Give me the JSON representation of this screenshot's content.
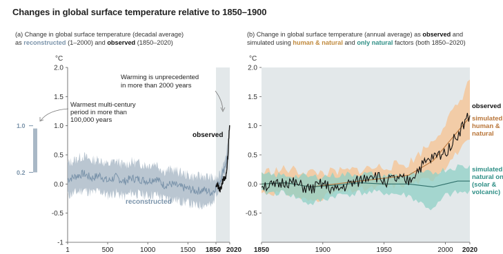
{
  "title": "Changes in global surface temperature relative to 1850–1900",
  "panel_a": {
    "subtitle_line1": "(a) Change in global surface temperature (decadal average)",
    "subtitle_as": "as ",
    "subtitle_reconstructed": "reconstructed",
    "subtitle_mid": " (1–2000) and ",
    "subtitle_observed": "observed",
    "subtitle_end": " (1850–2020)",
    "unit": "°C",
    "annotation_unprecedented": [
      "Warming is unprecedented",
      "in more than 2000 years"
    ],
    "annotation_warmest": [
      "Warmest multi-century",
      "period in more than",
      "100,000 years"
    ],
    "inset_labels": [
      "1.0",
      "0.2"
    ],
    "label_observed": "observed",
    "label_reconstructed": "reconstructed"
  },
  "panel_b": {
    "subtitle_line1_a": "(b) Change in global surface temperature (annual average) as ",
    "subtitle_line1_obs": "observed",
    "subtitle_line1_and": " and",
    "subtitle_line2_a": "simulated using ",
    "subtitle_line2_human": "human & natural",
    "subtitle_line2_and": " and ",
    "subtitle_line2_nat": "only natural",
    "subtitle_line2_end": " factors (both 1850–2020)",
    "unit": "°C",
    "label_observed": "observed",
    "label_human": [
      "simulated",
      "human &",
      "natural"
    ],
    "label_natural": [
      "simulated",
      "natural onl",
      "(solar &",
      "volcanic)"
    ]
  },
  "colors": {
    "reconstructed": "#7a93aa",
    "reconstructed_band": "#a9b8c6",
    "observed": "#111111",
    "human_band": "#f3c9a0",
    "human_line": "#b9763a",
    "natural_band": "#8fd0c5",
    "natural_line": "#2f6f6a",
    "shade": "#e3e8ea"
  },
  "chart_data": [
    {
      "type": "line",
      "title": "(a) Change in global surface temperature (decadal average)",
      "ylabel": "°C",
      "ylim": [
        -1,
        2
      ],
      "yticks": [
        "2.0",
        "1.5",
        "1.0",
        "0.5",
        "0.0",
        "-0.5",
        "-1"
      ],
      "xlim": [
        1,
        2020
      ],
      "xticks": [
        "1",
        "500",
        "1000",
        "1500",
        "1850",
        "2020"
      ],
      "series": [
        {
          "name": "reconstructed",
          "x": [
            1,
            100,
            200,
            300,
            400,
            500,
            600,
            700,
            800,
            900,
            1000,
            1100,
            1200,
            1300,
            1400,
            1500,
            1600,
            1700,
            1800,
            1850,
            1900,
            2000
          ],
          "y": [
            0.08,
            0.13,
            0.18,
            0.1,
            0.15,
            0.05,
            0.12,
            0.04,
            0.1,
            0.08,
            0.05,
            0.1,
            -0.02,
            0.0,
            -0.05,
            -0.08,
            -0.12,
            -0.1,
            -0.15,
            -0.05,
            0.05,
            0.5
          ],
          "lower": [
            -0.2,
            -0.15,
            -0.1,
            -0.15,
            -0.12,
            -0.2,
            -0.15,
            -0.22,
            -0.15,
            -0.18,
            -0.2,
            -0.18,
            -0.25,
            -0.25,
            -0.3,
            -0.32,
            -0.38,
            -0.35,
            -0.38,
            -0.15,
            -0.05,
            0.3
          ],
          "upper": [
            0.35,
            0.42,
            0.48,
            0.4,
            0.42,
            0.33,
            0.4,
            0.32,
            0.38,
            0.35,
            0.32,
            0.36,
            0.22,
            0.25,
            0.2,
            0.15,
            0.12,
            0.14,
            0.1,
            0.08,
            0.15,
            0.7
          ]
        },
        {
          "name": "observed",
          "x": [
            1850,
            1870,
            1890,
            1910,
            1930,
            1950,
            1970,
            1990,
            2000,
            2010,
            2020
          ],
          "y": [
            0.0,
            -0.02,
            -0.1,
            -0.1,
            0.05,
            0.1,
            0.05,
            0.35,
            0.55,
            0.85,
            1.1
          ]
        }
      ]
    },
    {
      "type": "line",
      "title": "(b) Change in global surface temperature (annual average)",
      "ylabel": "°C",
      "ylim": [
        -1,
        2
      ],
      "yticks": [
        "2.0",
        "1.5",
        "1.0",
        "0.5",
        "0.0",
        "-0.5"
      ],
      "xlim": [
        1850,
        2020
      ],
      "xticks": [
        "1850",
        "1900",
        "1950",
        "2000",
        "2020"
      ],
      "series": [
        {
          "name": "observed",
          "x": [
            1850,
            1860,
            1870,
            1880,
            1890,
            1900,
            1910,
            1920,
            1930,
            1940,
            1950,
            1960,
            1970,
            1980,
            1990,
            2000,
            2010,
            2020
          ],
          "y": [
            0.0,
            -0.05,
            0.05,
            -0.02,
            -0.1,
            0.0,
            -0.12,
            -0.02,
            0.05,
            0.18,
            0.05,
            0.08,
            0.05,
            0.3,
            0.45,
            0.55,
            0.85,
            1.2
          ]
        },
        {
          "name": "simulated human & natural",
          "x": [
            1850,
            1870,
            1890,
            1910,
            1930,
            1950,
            1970,
            1990,
            2000,
            2010,
            2020
          ],
          "y": [
            0.0,
            0.02,
            -0.05,
            0.0,
            0.05,
            0.1,
            0.15,
            0.4,
            0.65,
            0.9,
            1.15
          ],
          "lower": [
            -0.15,
            -0.15,
            -0.3,
            -0.15,
            -0.1,
            -0.05,
            0.0,
            0.1,
            0.3,
            0.55,
            0.75
          ],
          "upper": [
            0.2,
            0.25,
            0.2,
            0.2,
            0.25,
            0.3,
            0.35,
            0.75,
            1.05,
            1.35,
            1.8
          ]
        },
        {
          "name": "simulated natural only (solar & volcanic)",
          "x": [
            1850,
            1870,
            1890,
            1910,
            1930,
            1950,
            1970,
            1990,
            2000,
            2010,
            2020
          ],
          "y": [
            0.0,
            0.02,
            -0.05,
            -0.02,
            0.02,
            0.0,
            0.0,
            -0.05,
            0.0,
            0.05,
            0.05
          ],
          "lower": [
            -0.15,
            -0.15,
            -0.35,
            -0.2,
            -0.15,
            -0.15,
            -0.2,
            -0.45,
            -0.2,
            -0.15,
            -0.15
          ],
          "upper": [
            0.15,
            0.15,
            0.12,
            0.15,
            0.18,
            0.15,
            0.15,
            0.2,
            0.25,
            0.3,
            0.3
          ]
        }
      ]
    }
  ]
}
